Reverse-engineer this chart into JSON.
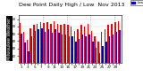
{
  "title": "Dew Point Daily High / Low  Nov 2013",
  "ylabel_left": "Milwaukee Weather",
  "bar_width": 0.4,
  "background_color": "#ffffff",
  "plot_bg_color": "#ffffff",
  "left_label_bg": "#000000",
  "left_label_color": "#ffffff",
  "grid_color": "#cccccc",
  "high_color": "#ff0000",
  "low_color": "#0000cc",
  "high_values": [
    55,
    42,
    32,
    48,
    52,
    54,
    56,
    55,
    56,
    54,
    57,
    54,
    52,
    54,
    52,
    50,
    44,
    46,
    52,
    50,
    54,
    44,
    36,
    29,
    42,
    46,
    52,
    54,
    56,
    57
  ],
  "low_values": [
    40,
    28,
    16,
    36,
    44,
    46,
    48,
    43,
    46,
    41,
    46,
    41,
    39,
    39,
    37,
    36,
    29,
    33,
    39,
    37,
    39,
    29,
    21,
    14,
    23,
    29,
    36,
    39,
    43,
    45
  ],
  "ylim": [
    0,
    65
  ],
  "yticks": [
    10,
    20,
    30,
    40,
    50,
    60
  ],
  "num_days": 30,
  "legend_high": "High",
  "legend_low": "Low",
  "title_fontsize": 4.5,
  "tick_fontsize": 3.0,
  "ylabel_fontsize": 3.5,
  "dashed_lines": [
    7.5,
    14.5,
    21.5,
    28.5
  ]
}
